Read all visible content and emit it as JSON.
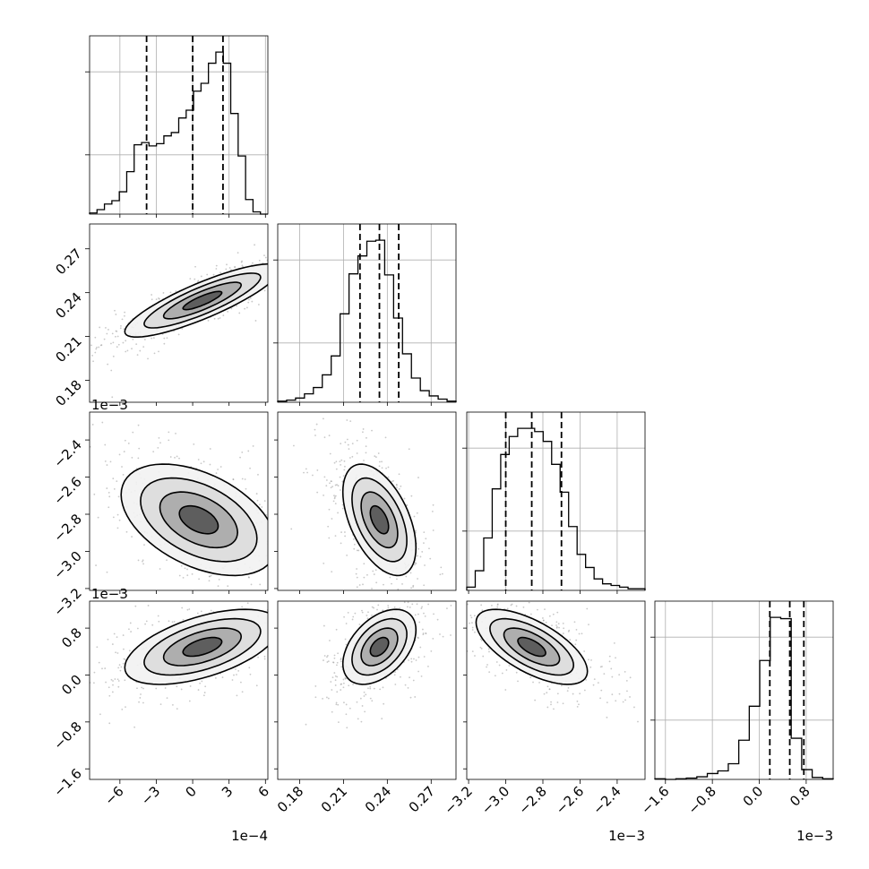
{
  "chart_data": {
    "type": "corner",
    "title": "",
    "parameters": [
      {
        "range": [
          -0.00085,
          0.00062
        ],
        "ticks": [
          -0.0006,
          -0.0003,
          0,
          0.0003,
          0.0006
        ],
        "tick_labels": [
          "−6",
          "−3",
          "0",
          "3",
          "6"
        ],
        "offset_text": "1e−4"
      },
      {
        "range": [
          0.165,
          0.287
        ],
        "ticks": [
          0.18,
          0.21,
          0.24,
          0.27
        ],
        "tick_labels": [
          "0.18",
          "0.21",
          "0.24",
          "0.27"
        ],
        "offset_text": ""
      },
      {
        "range": [
          -0.00321,
          -0.00225
        ],
        "ticks": [
          -0.0032,
          -0.003,
          -0.0028,
          -0.0026,
          -0.0024
        ],
        "tick_labels": [
          "−3.2",
          "−3.0",
          "−2.8",
          "−2.6",
          "−2.4"
        ],
        "offset_text": "1e−3"
      },
      {
        "range": [
          -0.00178,
          0.00126
        ],
        "ticks": [
          -0.0016,
          -0.0008,
          0,
          0.0008
        ],
        "tick_labels": [
          "−1.6",
          "−0.8",
          "0.0",
          "0.8"
        ],
        "offset_text": "1e−3"
      }
    ],
    "histograms": [
      {
        "param": 0,
        "quantiles": [
          -0.00038,
          0.0,
          0.00025
        ],
        "counts": [
          1,
          4,
          9,
          12,
          20,
          38,
          62,
          64,
          61,
          63,
          70,
          73,
          86,
          93,
          110,
          117,
          135,
          145,
          135,
          90,
          52,
          13,
          2,
          0
        ]
      },
      {
        "param": 1,
        "quantiles": [
          0.2213,
          0.2346,
          0.2478
        ],
        "counts": [
          1,
          2,
          4,
          8,
          14,
          26,
          44,
          84,
          122,
          139,
          153,
          154,
          121,
          80,
          46,
          23,
          11,
          6,
          3,
          1
        ]
      },
      {
        "param": 2,
        "quantiles": [
          -0.003,
          -0.00286,
          -0.0027
        ],
        "counts": [
          2,
          12,
          32,
          62,
          83,
          94,
          99,
          99,
          97,
          91,
          77,
          60,
          39,
          22,
          14,
          7,
          4,
          3,
          2,
          1,
          1
        ]
      },
      {
        "param": 3,
        "quantiles": [
          0.00018,
          0.00052,
          0.00076
        ],
        "counts": [
          1,
          0,
          1,
          2,
          4,
          9,
          13,
          24,
          60,
          112,
          182,
          248,
          246,
          63,
          15,
          3,
          1
        ]
      }
    ],
    "pairs": [
      {
        "x": 0,
        "y": 1,
        "center": [
          8e-05,
          0.2346
        ],
        "sd": [
          0.00032,
          0.0125
        ],
        "rho": 0.85
      },
      {
        "x": 0,
        "y": 2,
        "center": [
          5e-05,
          -0.00283
        ],
        "sd": [
          0.00032,
          0.00015
        ],
        "rho": -0.45
      },
      {
        "x": 1,
        "y": 2,
        "center": [
          0.2346,
          -0.00283
        ],
        "sd": [
          0.0125,
          0.00015
        ],
        "rho": -0.5
      },
      {
        "x": 0,
        "y": 3,
        "center": [
          8e-05,
          0.00048
        ],
        "sd": [
          0.00032,
          0.00032
        ],
        "rho": 0.55
      },
      {
        "x": 1,
        "y": 3,
        "center": [
          0.2346,
          0.00048
        ],
        "sd": [
          0.0125,
          0.00032
        ],
        "rho": 0.45
      },
      {
        "x": 2,
        "y": 3,
        "center": [
          -0.00286,
          0.00048
        ],
        "sd": [
          0.00015,
          0.00032
        ],
        "rho": -0.65
      }
    ],
    "contour_levels_sigma": [
      0.5,
      1.0,
      1.5,
      2.0
    ],
    "grid": true,
    "legend": "none"
  }
}
